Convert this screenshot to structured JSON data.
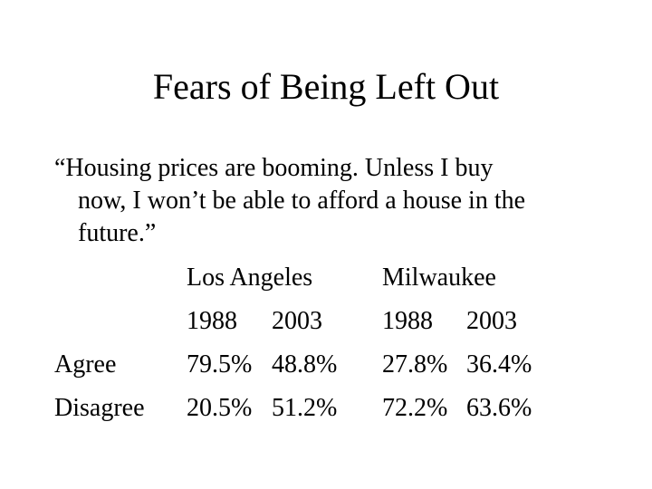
{
  "slide": {
    "title": "Fears of Being Left Out",
    "quote_lines": [
      "“Housing prices are booming. Unless I buy",
      "now, I won’t be able to afford a house in the",
      "future.”"
    ]
  },
  "table": {
    "cities": [
      "Los Angeles",
      "Milwaukee"
    ],
    "years": [
      "1988",
      "2003",
      "1988",
      "2003"
    ],
    "rows": [
      {
        "label": "Agree",
        "values": [
          "79.5%",
          "48.8%",
          "27.8%",
          "36.4%"
        ]
      },
      {
        "label": "Disagree",
        "values": [
          "20.5%",
          "51.2%",
          "72.2%",
          "63.6%"
        ]
      }
    ]
  }
}
